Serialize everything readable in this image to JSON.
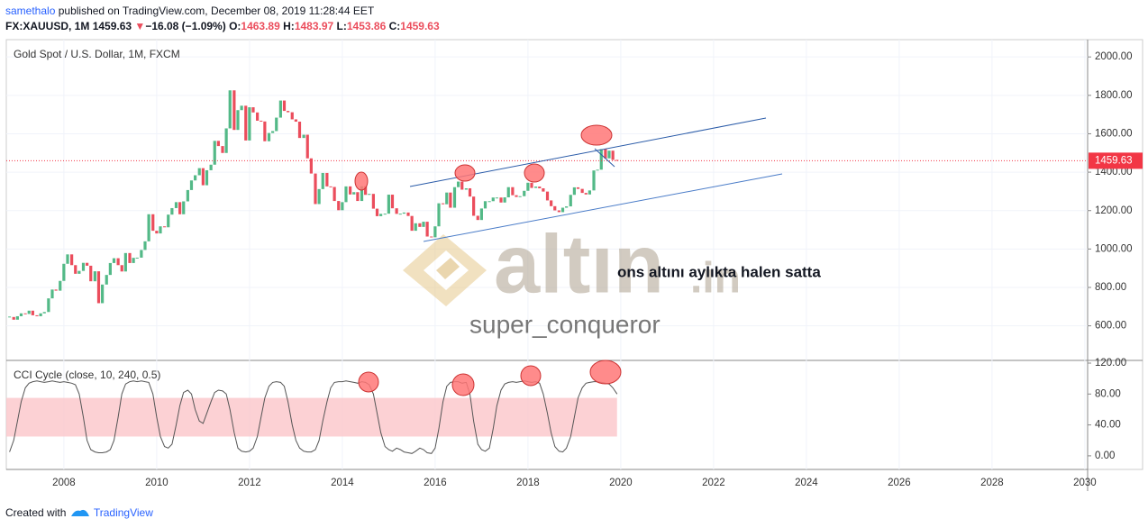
{
  "header": {
    "author": "samethalo",
    "published": "published on TradingView.com, December 08, 2019 11:28:44 EET",
    "symbol": "FX:XAUUSD, 1M",
    "price": 1459.63,
    "arrow": "▼",
    "change": "−16.08 (−1.09%)",
    "open_label": "O:",
    "open": 1463.89,
    "high_label": "H:",
    "high": 1483.97,
    "low_label": "L:",
    "low": 1453.86,
    "close_label": "C:",
    "close": 1459.63
  },
  "watermark": {
    "brand": "altın",
    "brand_suffix": ".in",
    "user": "super_conqueror"
  },
  "annotation": "ons altını aylıkta halen satta",
  "footer": {
    "created": "Created with",
    "brand": "TradingView"
  },
  "chart_data": [
    {
      "type": "candlestick",
      "title": "Gold Spot / U.S. Dollar, 1M, FXCM",
      "up_color": "#53b987",
      "down_color": "#eb4d5c",
      "last_price_line": true,
      "last_price_color": "#f23645",
      "xlim": [
        2006.76,
        2030.06
      ],
      "xticks": [
        2008,
        2010,
        2012,
        2014,
        2016,
        2018,
        2020,
        2022,
        2024,
        2026,
        2028,
        2030
      ],
      "ylim": [
        420,
        2090
      ],
      "yticks": [
        {
          "value": 600,
          "label": "600.00"
        },
        {
          "value": 800,
          "label": "800.00"
        },
        {
          "value": 1000,
          "label": "1000.00"
        },
        {
          "value": 1200,
          "label": "1200.00"
        },
        {
          "value": 1400,
          "label": "1400.00"
        },
        {
          "value": 1600,
          "label": "1600.00"
        },
        {
          "value": 1800,
          "label": "1800.00"
        },
        {
          "value": 2000,
          "label": "2000.00"
        }
      ],
      "grid": true,
      "x": [
        2006.83,
        2006.92,
        2007.0,
        2007.08,
        2007.17,
        2007.25,
        2007.33,
        2007.42,
        2007.5,
        2007.58,
        2007.67,
        2007.75,
        2007.83,
        2007.92,
        2008.0,
        2008.08,
        2008.17,
        2008.25,
        2008.33,
        2008.42,
        2008.5,
        2008.58,
        2008.67,
        2008.75,
        2008.83,
        2008.92,
        2009.0,
        2009.08,
        2009.17,
        2009.25,
        2009.33,
        2009.42,
        2009.5,
        2009.58,
        2009.67,
        2009.75,
        2009.83,
        2009.92,
        2010.0,
        2010.08,
        2010.17,
        2010.25,
        2010.33,
        2010.42,
        2010.5,
        2010.58,
        2010.67,
        2010.75,
        2010.83,
        2010.92,
        2011.0,
        2011.08,
        2011.17,
        2011.25,
        2011.33,
        2011.42,
        2011.5,
        2011.58,
        2011.67,
        2011.75,
        2011.83,
        2011.92,
        2012.0,
        2012.08,
        2012.17,
        2012.25,
        2012.33,
        2012.42,
        2012.5,
        2012.58,
        2012.67,
        2012.75,
        2012.83,
        2012.92,
        2013.0,
        2013.08,
        2013.17,
        2013.25,
        2013.33,
        2013.42,
        2013.5,
        2013.58,
        2013.67,
        2013.75,
        2013.83,
        2013.92,
        2014.0,
        2014.08,
        2014.17,
        2014.25,
        2014.33,
        2014.42,
        2014.5,
        2014.58,
        2014.67,
        2014.75,
        2014.83,
        2014.92,
        2015.0,
        2015.08,
        2015.17,
        2015.25,
        2015.33,
        2015.42,
        2015.5,
        2015.58,
        2015.67,
        2015.75,
        2015.83,
        2015.92,
        2016.0,
        2016.08,
        2016.17,
        2016.25,
        2016.33,
        2016.42,
        2016.5,
        2016.58,
        2016.67,
        2016.75,
        2016.83,
        2016.92,
        2017.0,
        2017.08,
        2017.17,
        2017.25,
        2017.33,
        2017.42,
        2017.5,
        2017.58,
        2017.67,
        2017.75,
        2017.83,
        2017.92,
        2018.0,
        2018.08,
        2018.17,
        2018.25,
        2018.33,
        2018.42,
        2018.5,
        2018.58,
        2018.67,
        2018.75,
        2018.83,
        2018.92,
        2019.0,
        2019.08,
        2019.17,
        2019.25,
        2019.33,
        2019.42,
        2019.5,
        2019.58,
        2019.67,
        2019.75,
        2019.83,
        2019.92
      ],
      "values": [
        646,
        632,
        650,
        665,
        662,
        679,
        655,
        650,
        665,
        672,
        743,
        789,
        783,
        834,
        923,
        972,
        916,
        871,
        886,
        928,
        913,
        832,
        884,
        718,
        815,
        865,
        927,
        952,
        916,
        883,
        979,
        927,
        954,
        955,
        995,
        1040,
        1181,
        1095,
        1081,
        1118,
        1113,
        1179,
        1213,
        1244,
        1181,
        1248,
        1307,
        1357,
        1384,
        1421,
        1332,
        1410,
        1439,
        1563,
        1536,
        1500,
        1628,
        1826,
        1620,
        1723,
        1746,
        1565,
        1738,
        1711,
        1668,
        1664,
        1561,
        1604,
        1614,
        1684,
        1773,
        1719,
        1712,
        1675,
        1663,
        1578,
        1595,
        1472,
        1393,
        1234,
        1312,
        1396,
        1326,
        1323,
        1250,
        1202,
        1244,
        1326,
        1284,
        1296,
        1250,
        1327,
        1282,
        1287,
        1210,
        1171,
        1183,
        1184,
        1283,
        1212,
        1183,
        1184,
        1190,
        1172,
        1095,
        1134,
        1115,
        1142,
        1065,
        1061,
        1118,
        1238,
        1233,
        1294,
        1215,
        1322,
        1351,
        1309,
        1316,
        1273,
        1173,
        1151,
        1211,
        1249,
        1249,
        1268,
        1268,
        1242,
        1269,
        1322,
        1280,
        1271,
        1275,
        1303,
        1345,
        1318,
        1325,
        1316,
        1299,
        1253,
        1223,
        1201,
        1192,
        1215,
        1222,
        1282,
        1321,
        1313,
        1292,
        1284,
        1305,
        1409,
        1413,
        1520,
        1472,
        1512,
        1464,
        1459.63
      ]
    },
    {
      "type": "line",
      "title": "CCI Cycle (close, 10, 240, 0.5)",
      "color": "#555555",
      "band": [
        25,
        75
      ],
      "band_color": "#fbc6c9",
      "ylim": [
        -17.6,
        123.5
      ],
      "yticks": [
        {
          "value": 0,
          "label": "0.00"
        },
        {
          "value": 40,
          "label": "40.00"
        },
        {
          "value": 80,
          "label": "80.00"
        },
        {
          "value": 120,
          "label": "120.00"
        }
      ],
      "values": [
        5,
        20,
        45,
        70,
        88,
        94,
        96,
        97,
        96,
        95,
        96,
        97,
        96,
        95,
        96,
        95,
        94,
        92,
        80,
        50,
        20,
        8,
        5,
        4,
        4,
        5,
        8,
        20,
        50,
        80,
        93,
        96,
        97,
        96,
        97,
        96,
        95,
        80,
        50,
        25,
        12,
        10,
        15,
        40,
        65,
        82,
        85,
        80,
        60,
        45,
        42,
        55,
        70,
        82,
        85,
        84,
        80,
        60,
        30,
        10,
        6,
        5,
        6,
        10,
        25,
        50,
        75,
        90,
        95,
        96,
        95,
        90,
        70,
        40,
        20,
        10,
        6,
        5,
        5,
        8,
        20,
        45,
        70,
        88,
        95,
        96,
        96,
        97,
        96,
        95,
        94,
        96,
        95,
        92,
        80,
        55,
        30,
        12,
        8,
        6,
        10,
        8,
        5,
        4,
        3,
        6,
        10,
        8,
        4,
        3,
        10,
        35,
        70,
        90,
        95,
        96,
        96,
        94,
        95,
        80,
        45,
        15,
        8,
        6,
        10,
        35,
        65,
        85,
        93,
        95,
        96,
        95,
        96,
        97,
        96,
        95,
        96,
        94,
        80,
        55,
        30,
        12,
        6,
        5,
        10,
        25,
        50,
        75,
        88,
        94,
        95,
        96,
        96,
        95,
        94,
        93,
        88,
        80
      ]
    }
  ]
}
